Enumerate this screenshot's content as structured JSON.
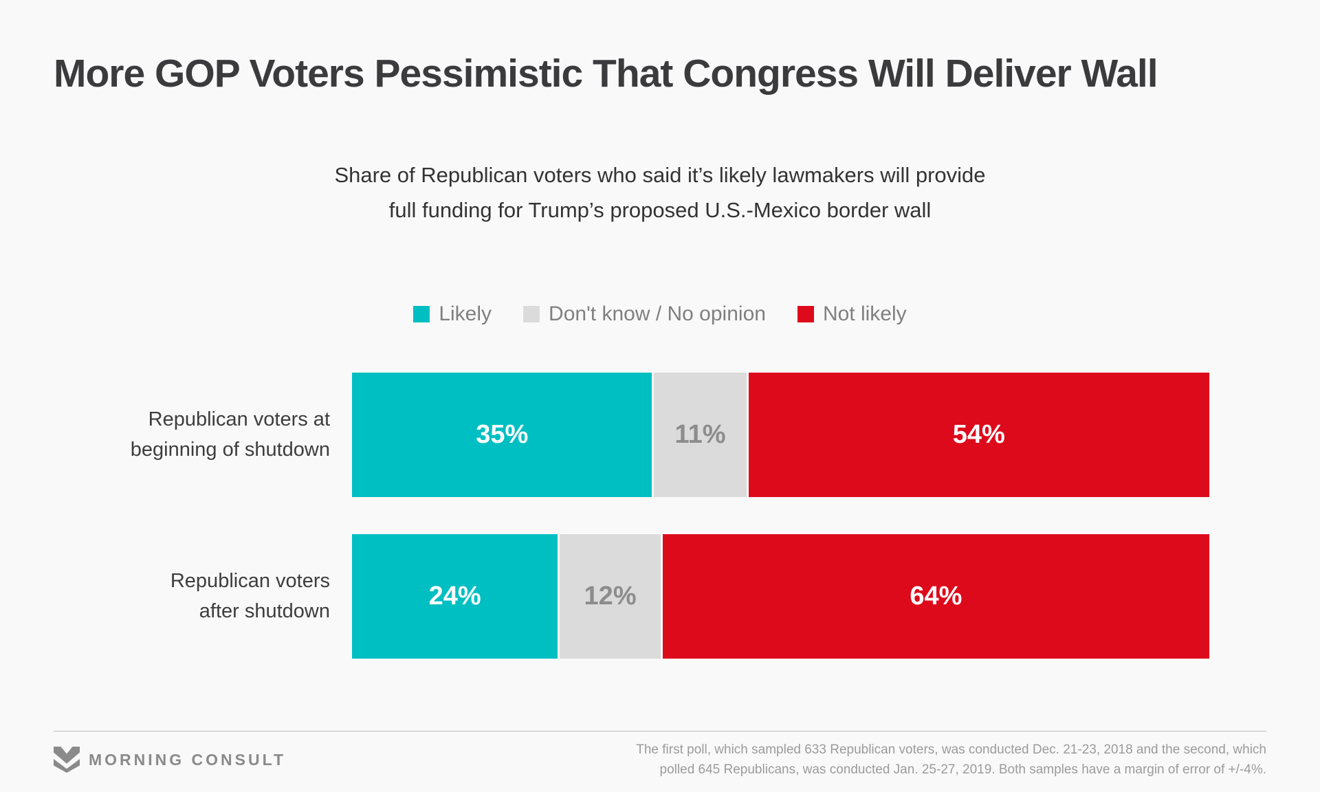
{
  "page": {
    "background_color": "#F9F9F9"
  },
  "header": {
    "title": "More GOP Voters Pessimistic That Congress Will Deliver Wall",
    "subtitle_lines": [
      "Share of Republican voters who said it’s likely lawmakers will provide",
      "full funding for Trump’s proposed U.S.-Mexico border wall"
    ]
  },
  "chart_data": {
    "type": "bar",
    "orientation": "horizontal",
    "stacked": true,
    "title": "More GOP Voters Pessimistic That Congress Will Deliver Wall",
    "subtitle": "Share of Republican voters who said it’s likely lawmakers will provide full funding for Trump’s proposed U.S.-Mexico border wall",
    "categories": [
      [
        "Republican voters at",
        "beginning of shutdown"
      ],
      [
        "Republican voters",
        "after shutdown"
      ]
    ],
    "series": [
      {
        "name": "Likely",
        "color": "#00BFC2",
        "label_color": "#FFFFFF",
        "values": [
          35,
          24
        ]
      },
      {
        "name": "Don't know / No opinion",
        "color": "#DBDBDB",
        "label_color": "#8C8C8C",
        "values": [
          11,
          12
        ]
      },
      {
        "name": "Not likely",
        "color": "#DD0A1C",
        "label_color": "#FFFFFF",
        "values": [
          54,
          64
        ]
      }
    ],
    "value_suffix": "%",
    "xlim": [
      0,
      100
    ],
    "legend_position": "top-center",
    "grid": false,
    "label_text_color": "#3D3D3D",
    "legend_text_color": "#7F7F7F"
  },
  "footer": {
    "logo_text": "MORNING CONSULT",
    "logo_color": "#8A8A8A",
    "note_lines": [
      "The first poll, which sampled 633 Republican voters, was conducted Dec. 21-23, 2018 and the second, which",
      "polled 645 Republicans, was conducted Jan. 25-27, 2019. Both samples have a margin of error of +/-4%."
    ]
  }
}
